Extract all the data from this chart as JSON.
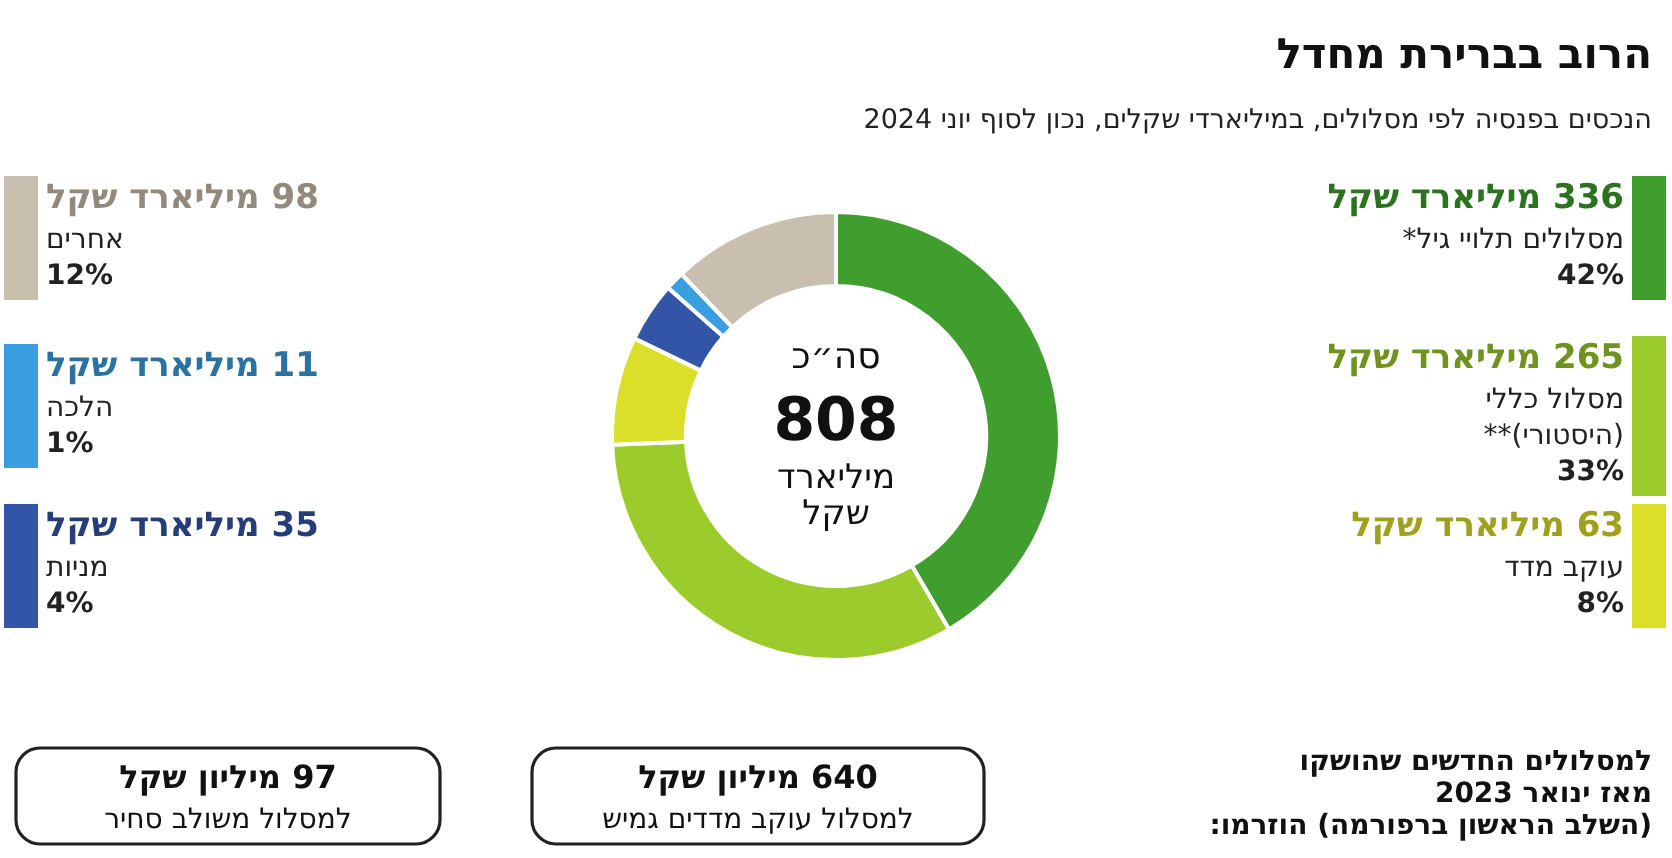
{
  "chart_data": {
    "type": "donut",
    "title": "הרוב בברירת מחדל",
    "subtitle": "הנכסים בפנסיה לפי מסלולים, במיליארדי שקלים, נכון לסוף יוני 2024",
    "categories": [
      "מסלולים תלויי גיל*",
      "מסלול כללי\n(היסטורי)**",
      "עוקב מדד",
      "מניות",
      "הלכה",
      "אחרים"
    ],
    "values": [
      336,
      265,
      63,
      35,
      11,
      98
    ],
    "colors": [
      "#3f9e2e",
      "#9ccc2c",
      "#dcdf2a",
      "#3355a8",
      "#3a9fe0",
      "#c9bfae"
    ],
    "legend": "right",
    "value_labels": [
      "336 מיליארד שקל",
      "265 מיליארד שקל",
      "63 מיליארד שקל",
      "35 מיליארד שקל",
      "11 מיליארד שקל",
      "98 מיליארד שקל"
    ],
    "annotations": [
      {
        "text": "42%",
        "x": "מסלולים תלויי גיל*"
      },
      {
        "text": "33%",
        "x": "מסלול כללי\n(היסטורי)**"
      },
      {
        "text": "8%",
        "x": "עוקב מדד"
      },
      {
        "text": "4%",
        "x": "מניות"
      },
      {
        "text": "1%",
        "x": "הלכה"
      },
      {
        "text": "12%",
        "x": "אחרים"
      },
      "סה״כ\n808\nמיליארד\nשקל",
      "למסלולים החדשים שהושקו\nמאז ינואר 2023\n(השלב הראשון ברפורמה) הוזרמו:",
      "640 מיליון שקל\nלמסלול עוקב מדדים גמיש",
      "97 מיליון שקל\nלמסלול משולב סחיר"
    ]
  }
}
